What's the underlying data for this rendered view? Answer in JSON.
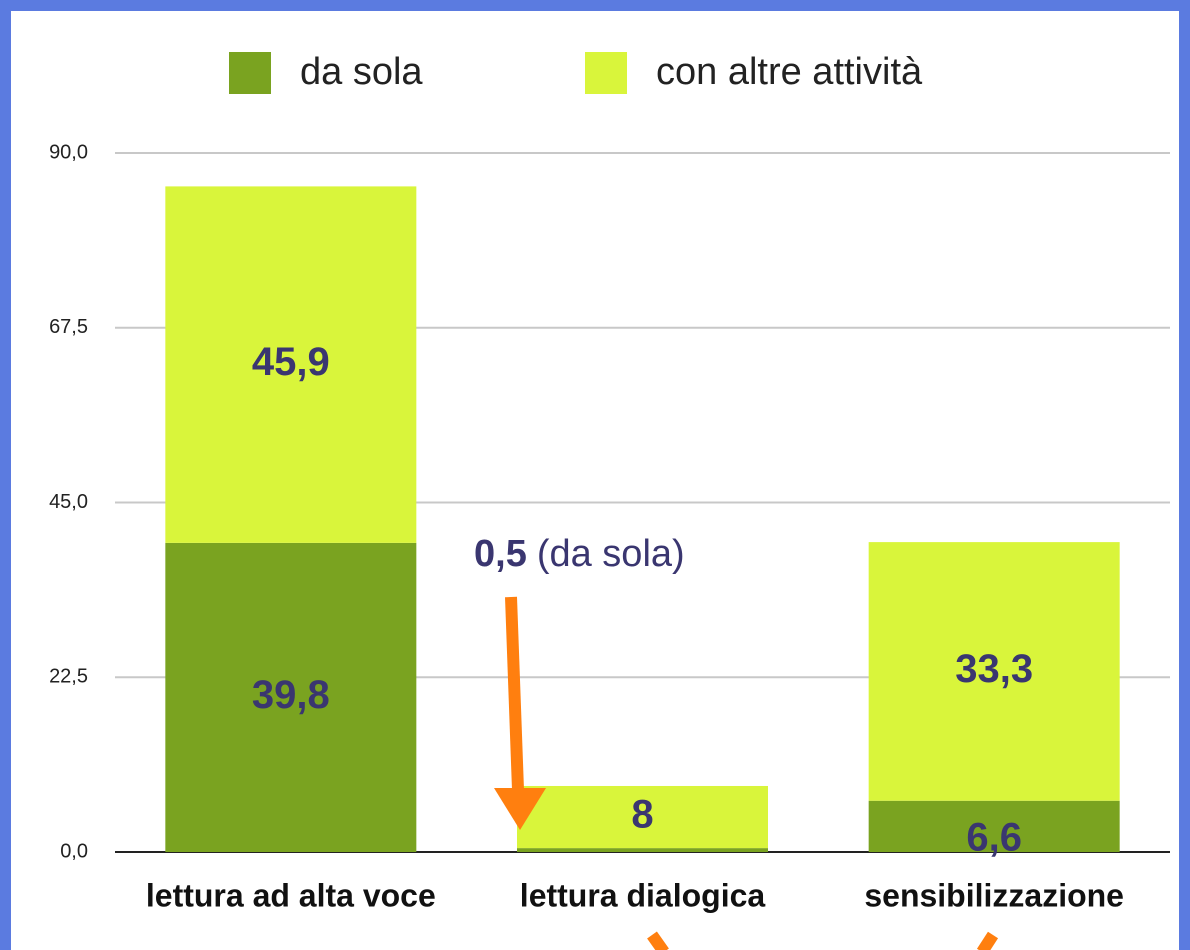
{
  "chart_data": {
    "type": "stacked_bar",
    "categories": [
      "lettura ad alta voce",
      "lettura dialogica",
      "sensibilizzazione"
    ],
    "series": [
      {
        "name": "da sola",
        "color": "#7aa320",
        "values": [
          39.8,
          0.5,
          6.6
        ],
        "value_labels": [
          "39,8",
          "0,5",
          "6,6"
        ]
      },
      {
        "name": "con altre attività",
        "color": "#d9f53b",
        "values": [
          45.9,
          8,
          33.3
        ],
        "value_labels": [
          "45,9",
          "8",
          "33,3"
        ]
      }
    ],
    "annotation": "(da sola)",
    "ylim": [
      0,
      90
    ],
    "yticks": [
      {
        "value": 0,
        "label": "0,0"
      },
      {
        "value": 22.5,
        "label": "22,5"
      },
      {
        "value": 45,
        "label": "45,0"
      },
      {
        "value": 67.5,
        "label": "67,5"
      },
      {
        "value": 90,
        "label": "90,0"
      }
    ],
    "grid": true,
    "legend": "top"
  }
}
